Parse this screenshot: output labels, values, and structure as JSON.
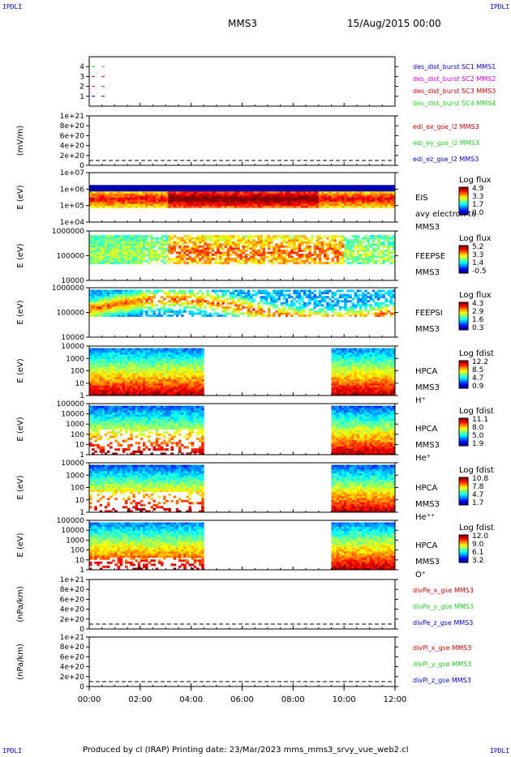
{
  "corners": {
    "tl": "IPDLI",
    "tr": "IPDLI",
    "bl": "IPDLI",
    "br": "IPDLI"
  },
  "header": {
    "spacecraft": "MMS3",
    "datetime": "15/Aug/2015 00:00"
  },
  "footer": {
    "text": "Produced by cl (IRAP)   Printing date: 23/Mar/2023   mms_mms3_srvy_vue_web2.cl"
  },
  "colors": {
    "black": "#000000",
    "red": "#cc0000",
    "green": "#22cc22",
    "blue": "#0000cc",
    "magenta": "#cc00cc"
  },
  "chart_data": [
    {
      "type": "line",
      "panel": "burst",
      "yticks": [
        "1",
        "2",
        "3",
        "4"
      ],
      "ylim": [
        0.5,
        4.5
      ],
      "series": [
        {
          "name": "des_dist_burst SC1 MMS1",
          "color": "#0000cc",
          "y": 1
        },
        {
          "name": "des_dist_burst SC2 MMS2",
          "color": "#cc00cc",
          "y": 2
        },
        {
          "name": "des_dist_burst SC3 MMS3",
          "color": "#cc0000",
          "y": 3
        },
        {
          "name": "des_dist_burst SC4 MMS4",
          "color": "#22cc22",
          "y": 4
        }
      ]
    },
    {
      "type": "line",
      "panel": "edi",
      "ylabel": "(mV/m)",
      "yticks": [
        "0",
        "2e+20",
        "4e+20",
        "6e+20",
        "8e+20",
        "1e+21"
      ],
      "ylim": [
        0,
        1e+21
      ],
      "series": [
        {
          "name": "edi_ex_gse_l2 MMS3",
          "color": "#cc0000"
        },
        {
          "name": "edi_ey_gse_l2 MMS3",
          "color": "#22cc22"
        },
        {
          "name": "edi_ez_gse_l2 MMS3",
          "color": "#0000cc"
        }
      ]
    },
    {
      "type": "heatmap",
      "panel": "eis",
      "ylabel": "E (eV)",
      "yticks": [
        "1e+04",
        "1e+05",
        "1e+06",
        "1e+07"
      ],
      "labels": [
        "EIS",
        "avy electron to",
        "MMS3"
      ],
      "colorbar": {
        "title": "Log flux",
        "ticks": [
          "4.9",
          "3.3",
          "1.7",
          "0.0"
        ]
      }
    },
    {
      "type": "heatmap",
      "panel": "feepse",
      "ylabel": "E (eV)",
      "yticks": [
        "10000",
        "100000",
        "1000000"
      ],
      "labels": [
        "FEEPSE",
        "MMS3"
      ],
      "colorbar": {
        "title": "Log flux",
        "ticks": [
          "5.2",
          "3.3",
          "1.4",
          "-0.5"
        ]
      }
    },
    {
      "type": "heatmap",
      "panel": "feepsi",
      "ylabel": "E (eV)",
      "yticks": [
        "10000",
        "100000",
        "1000000"
      ],
      "labels": [
        "FEEPSI",
        "MMS3"
      ],
      "colorbar": {
        "title": "Log flux",
        "ticks": [
          "4.3",
          "2.9",
          "1.6",
          "0.3"
        ]
      }
    },
    {
      "type": "heatmap",
      "panel": "hpca-h",
      "ylabel": "E (eV)",
      "yticks": [
        "1",
        "10",
        "100",
        "1000",
        "10000"
      ],
      "labels": [
        "HPCA",
        "MMS3",
        "H⁺"
      ],
      "colorbar": {
        "title": "Log fdist",
        "ticks": [
          "12.2",
          "8.5",
          "4.7",
          "0.9"
        ]
      }
    },
    {
      "type": "heatmap",
      "panel": "hpca-he",
      "ylabel": "E (eV)",
      "yticks": [
        "1",
        "10",
        "100",
        "1000",
        "10000",
        "100000"
      ],
      "labels": [
        "HPCA",
        "MMS3",
        "He⁺"
      ],
      "colorbar": {
        "title": "Log fdist",
        "ticks": [
          "11.1",
          "8.0",
          "5.0",
          "1.9"
        ]
      }
    },
    {
      "type": "heatmap",
      "panel": "hpca-he2",
      "ylabel": "E (eV)",
      "yticks": [
        "1",
        "10",
        "100",
        "1000",
        "10000"
      ],
      "labels": [
        "HPCA",
        "MMS3",
        "He⁺⁺"
      ],
      "colorbar": {
        "title": "Log fdist",
        "ticks": [
          "10.8",
          "7.8",
          "4.7",
          "1.7"
        ]
      }
    },
    {
      "type": "heatmap",
      "panel": "hpca-o",
      "ylabel": "E (eV)",
      "yticks": [
        "1",
        "10",
        "100",
        "1000",
        "10000",
        "100000"
      ],
      "labels": [
        "HPCA",
        "MMS3",
        "O⁺"
      ],
      "colorbar": {
        "title": "Log fdist",
        "ticks": [
          "12.0",
          "9.0",
          "6.1",
          "3.2"
        ]
      }
    },
    {
      "type": "line",
      "panel": "divpe",
      "ylabel": "(nPa/km)",
      "yticks": [
        "0",
        "2e+20",
        "4e+20",
        "6e+20",
        "8e+20",
        "1e+21"
      ],
      "ylim": [
        0,
        1e+21
      ],
      "series": [
        {
          "name": "divPe_x_gse MMS3",
          "color": "#cc0000"
        },
        {
          "name": "divPe_y_gse MMS3",
          "color": "#22cc22"
        },
        {
          "name": "divPe_z_gse MMS3",
          "color": "#0000cc"
        }
      ]
    },
    {
      "type": "line",
      "panel": "divpi",
      "ylabel": "(nPa/km)",
      "yticks": [
        "0",
        "2e+20",
        "4e+20",
        "6e+20",
        "8e+20",
        "1e+21"
      ],
      "ylim": [
        0,
        1e+21
      ],
      "series": [
        {
          "name": "divPi_x_gse MMS3",
          "color": "#cc0000"
        },
        {
          "name": "divPi_y_gse MMS3",
          "color": "#22cc22"
        },
        {
          "name": "divPi_z_gse MMS3",
          "color": "#0000cc"
        }
      ]
    }
  ],
  "time_axis": {
    "ticks": [
      "00:00",
      "02:00",
      "04:00",
      "06:00",
      "08:00",
      "10:00",
      "12:00"
    ],
    "range_hours": [
      0,
      12
    ]
  }
}
